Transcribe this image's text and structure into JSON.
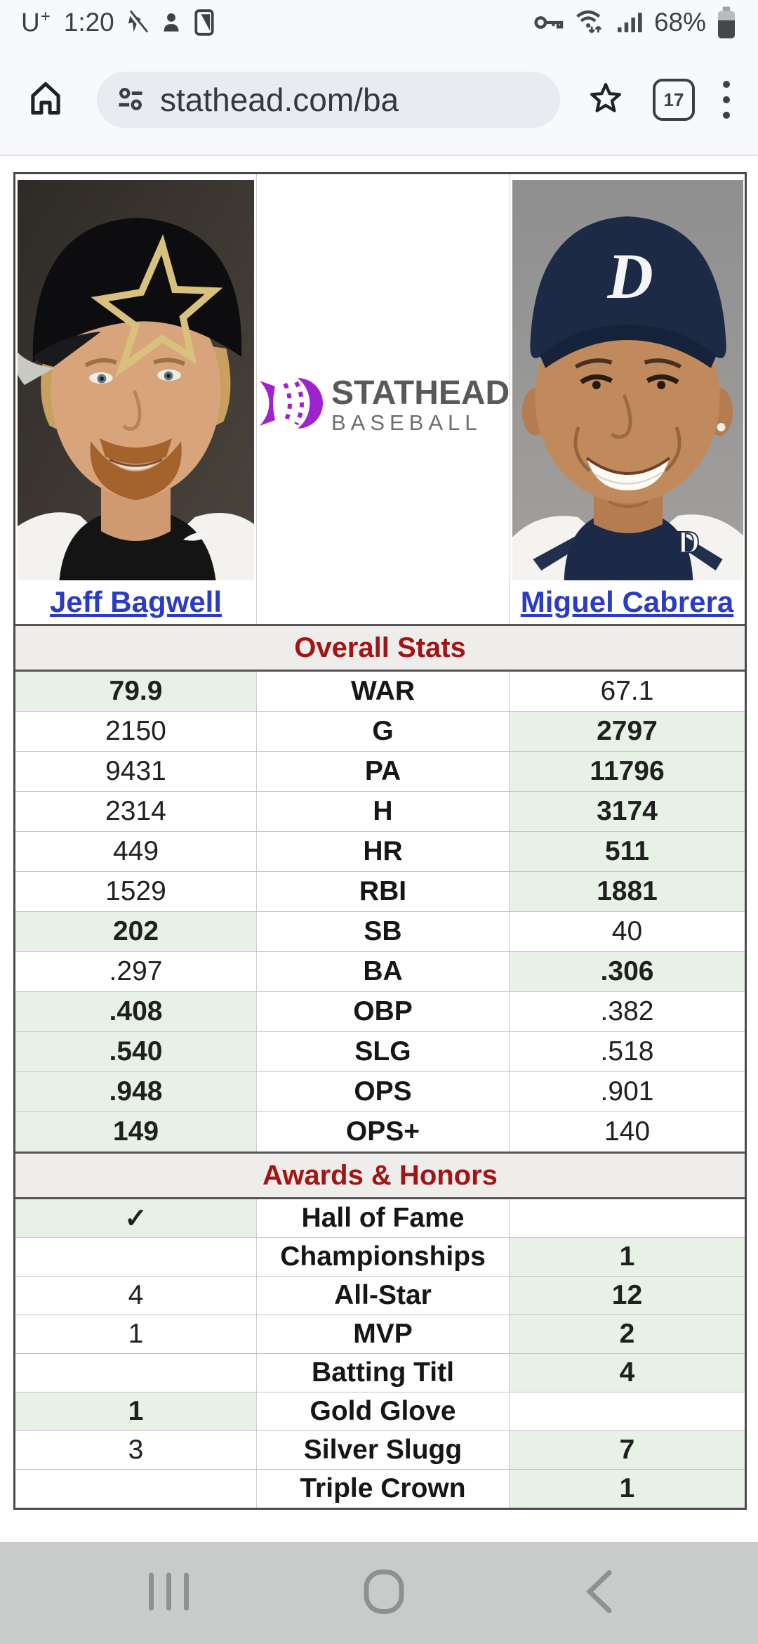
{
  "status_bar": {
    "carrier": "U",
    "carrier_plus": "+",
    "time": "1:20",
    "battery_percent": "68%",
    "notification_icons": [
      "muted-app-icon",
      "person-icon",
      "phone-storage-icon"
    ],
    "system_icons": [
      "vpn-key-icon",
      "wifi-icon",
      "signal-icon",
      "battery-icon"
    ]
  },
  "browser": {
    "url": "stathead.com/ba",
    "tab_count": "17",
    "toolbar_icons": [
      "home-icon",
      "site-settings-icon",
      "bookmark-star-icon",
      "tab-switcher-icon",
      "menu-kebab-icon"
    ]
  },
  "logo": {
    "title": "STATHEAD",
    "subtitle": "BASEBALL",
    "brand_color": "#9e22d0"
  },
  "players": [
    {
      "name": "Jeff Bagwell"
    },
    {
      "name": "Miguel Cabrera"
    }
  ],
  "sections": [
    {
      "title": "Overall Stats",
      "rows": [
        {
          "left": "79.9",
          "label": "WAR",
          "right": "67.1",
          "winner": "left"
        },
        {
          "left": "2150",
          "label": "G",
          "right": "2797",
          "winner": "right"
        },
        {
          "left": "9431",
          "label": "PA",
          "right": "11796",
          "winner": "right"
        },
        {
          "left": "2314",
          "label": "H",
          "right": "3174",
          "winner": "right"
        },
        {
          "left": "449",
          "label": "HR",
          "right": "511",
          "winner": "right"
        },
        {
          "left": "1529",
          "label": "RBI",
          "right": "1881",
          "winner": "right"
        },
        {
          "left": "202",
          "label": "SB",
          "right": "40",
          "winner": "left"
        },
        {
          "left": ".297",
          "label": "BA",
          "right": ".306",
          "winner": "right"
        },
        {
          "left": ".408",
          "label": "OBP",
          "right": ".382",
          "winner": "left"
        },
        {
          "left": ".540",
          "label": "SLG",
          "right": ".518",
          "winner": "left"
        },
        {
          "left": ".948",
          "label": "OPS",
          "right": ".901",
          "winner": "left"
        },
        {
          "left": "149",
          "label": "OPS+",
          "right": "140",
          "winner": "left"
        }
      ]
    },
    {
      "title": "Awards & Honors",
      "rows": [
        {
          "left": "✓",
          "label": "Hall of Fame",
          "right": "",
          "winner": "left"
        },
        {
          "left": "",
          "label": "Championships",
          "right": "1",
          "winner": "right"
        },
        {
          "left": "4",
          "label": "All-Star",
          "right": "12",
          "winner": "right"
        },
        {
          "left": "1",
          "label": "MVP",
          "right": "2",
          "winner": "right"
        },
        {
          "left": "",
          "label": "Batting Titl",
          "right": "4",
          "winner": "right"
        },
        {
          "left": "1",
          "label": "Gold Glove",
          "right": "",
          "winner": "left"
        },
        {
          "left": "3",
          "label": "Silver Slugg",
          "right": "7",
          "winner": "right"
        },
        {
          "left": "",
          "label": "Triple Crown",
          "right": "1",
          "winner": "right"
        }
      ]
    }
  ],
  "colors": {
    "winner_green": "#e8f1e6",
    "header_red": "#a31515",
    "link_blue": "#2b3cc4",
    "band_gray": "#eeedeb"
  },
  "nav_bar": {
    "icons": [
      "recents-icon",
      "home-icon",
      "back-icon"
    ]
  }
}
